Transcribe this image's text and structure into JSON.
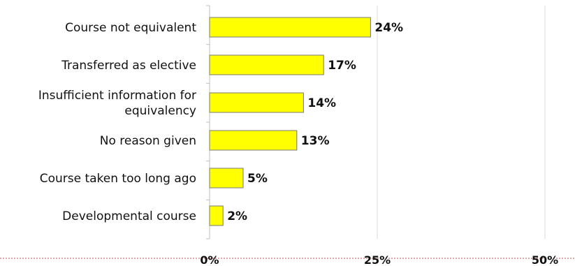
{
  "chart_data": {
    "type": "bar",
    "orientation": "horizontal",
    "categories": [
      "Course not equivalent",
      "Transferred as elective",
      "Insufficient information for equivalency",
      "No reason given",
      "Course taken too long ago",
      "Developmental course"
    ],
    "category_lines": [
      [
        "Course not equivalent"
      ],
      [
        "Transferred as elective"
      ],
      [
        "Insufficient information for",
        "equivalency"
      ],
      [
        "No reason given"
      ],
      [
        "Course taken too long ago"
      ],
      [
        "Developmental course"
      ]
    ],
    "values": [
      24,
      17,
      14,
      13,
      5,
      2
    ],
    "value_labels": [
      "24%",
      "17%",
      "14%",
      "13%",
      "5%",
      "2%"
    ],
    "xlim": [
      0,
      50
    ],
    "ticks": [
      0,
      25,
      50
    ],
    "tick_labels": [
      "0%",
      "25%",
      "50%"
    ],
    "gridlines": true,
    "legend": "none",
    "title": "",
    "xlabel": "",
    "ylabel": "",
    "bar_color": "#ffff00",
    "bar_stroke": "#777777",
    "axis_color": "#c0504d",
    "grid_color": "#d9d9d9"
  }
}
